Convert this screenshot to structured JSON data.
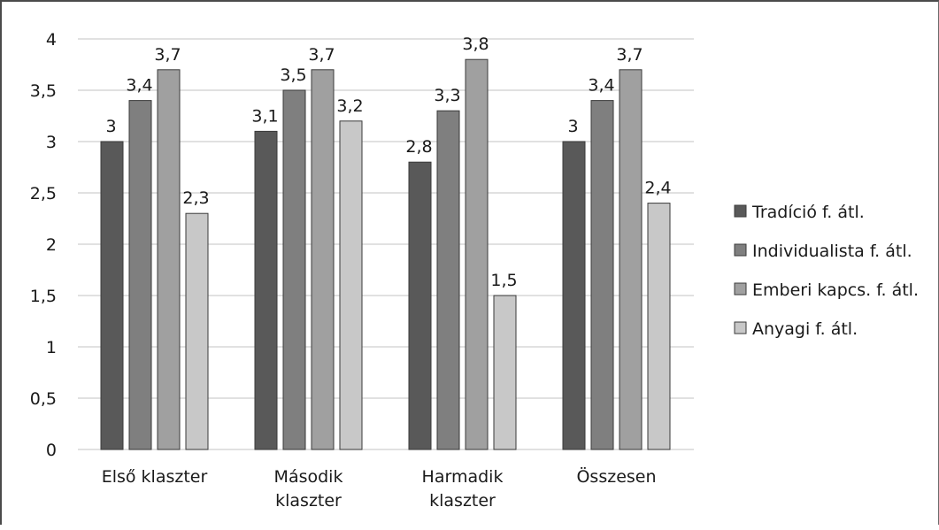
{
  "chart_data": {
    "type": "bar",
    "categories": [
      [
        "Első klaszter"
      ],
      [
        "Második",
        "klaszter"
      ],
      [
        "Harmadik",
        "klaszter"
      ],
      [
        "Összesen"
      ]
    ],
    "series": [
      {
        "name": "Tradíció f. átl.",
        "color": "#595959",
        "values": [
          3,
          3.1,
          2.8,
          3
        ],
        "labels": [
          "3",
          "3,1",
          "2,8",
          "3"
        ]
      },
      {
        "name": "Individualista f. átl.",
        "color": "#7f7f7f",
        "values": [
          3.4,
          3.5,
          3.3,
          3.4
        ],
        "labels": [
          "3,4",
          "3,5",
          "3,3",
          "3,4"
        ]
      },
      {
        "name": "Emberi kapcs. f. átl.",
        "color": "#a0a0a0",
        "values": [
          3.7,
          3.7,
          3.8,
          3.7
        ],
        "labels": [
          "3,7",
          "3,7",
          "3,8",
          "3,7"
        ]
      },
      {
        "name": "Anyagi f. átl.",
        "color": "#c8c8c8",
        "values": [
          2.3,
          3.2,
          1.5,
          2.4
        ],
        "labels": [
          "2,3",
          "3,2",
          "1,5",
          "2,4"
        ]
      }
    ],
    "ylim": [
      0,
      4
    ],
    "yticks": [
      0,
      0.5,
      1,
      1.5,
      2,
      2.5,
      3,
      3.5,
      4
    ],
    "ytick_labels": [
      "0",
      "0,5",
      "1",
      "1,5",
      "2",
      "2,5",
      "3",
      "3,5",
      "4"
    ],
    "grid": true,
    "legend_position": "right"
  }
}
